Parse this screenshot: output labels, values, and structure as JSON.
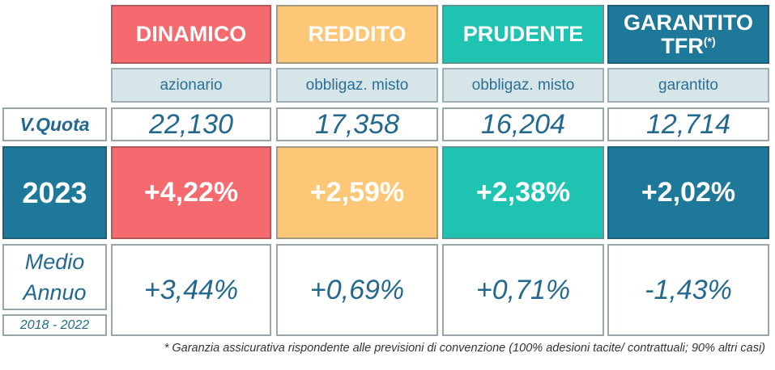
{
  "funds": [
    {
      "name": "DINAMICO",
      "type": "azionario",
      "quota": "22,130",
      "year_return": "+4,22%",
      "avg_return": "+3,44%",
      "color": "#f46a6f"
    },
    {
      "name": "REDDITO",
      "type": "obbligaz. misto",
      "quota": "17,358",
      "year_return": "+2,59%",
      "avg_return": "+0,69%",
      "color": "#fcc777"
    },
    {
      "name": "PRUDENTE",
      "type": "obbligaz. misto",
      "quota": "16,204",
      "year_return": "+2,38%",
      "avg_return": "+0,71%",
      "color": "#1fc3b2"
    },
    {
      "name": "GARANTITO",
      "name_line2": "TFR",
      "name_sup": "(*)",
      "type": "garantito",
      "quota": "12,714",
      "year_return": "+2,02%",
      "avg_return": "-1,43%",
      "color": "#1e789a"
    }
  ],
  "labels": {
    "quota": "V.Quota",
    "year": "2023",
    "medio_line1": "Medio",
    "medio_line2": "Annuo",
    "period": "2018 - 2022"
  },
  "footnote": "* Garanzia assicurativa rispondente alle previsioni di convenzione (100% adesioni tacite/ contrattuali; 90% altri casi)"
}
